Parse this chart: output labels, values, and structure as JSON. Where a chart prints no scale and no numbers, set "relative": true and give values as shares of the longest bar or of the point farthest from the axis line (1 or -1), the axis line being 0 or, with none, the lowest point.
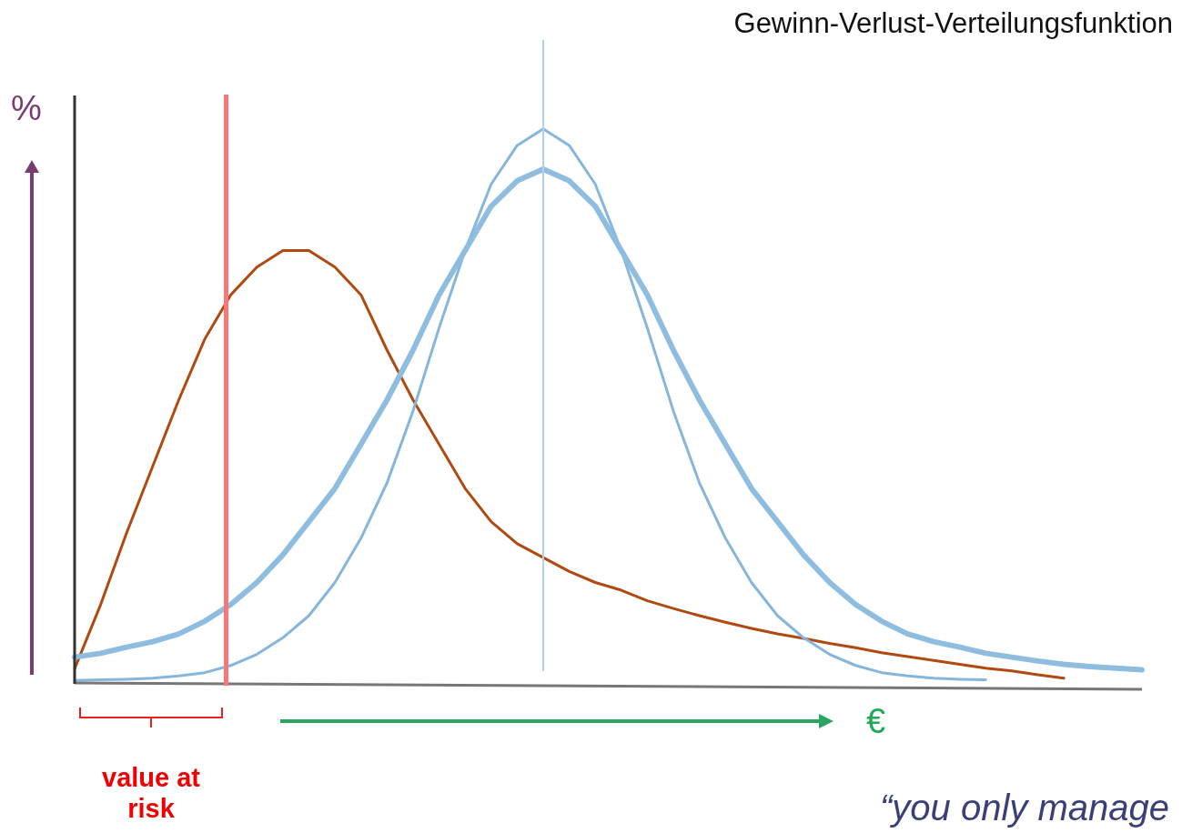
{
  "chart_data": {
    "type": "line",
    "title": "Gewinn-Verlust-Verteilungsfunktion",
    "xlabel": "€",
    "ylabel": "%",
    "relative": true,
    "marker": "none",
    "line_style": "solid",
    "categories": [
      null,
      null,
      null,
      null,
      null,
      null,
      null,
      null,
      null,
      null,
      null,
      null,
      null,
      null,
      null,
      null,
      null,
      null,
      null,
      null,
      null,
      null,
      null,
      null,
      null,
      null,
      null,
      null,
      null,
      null,
      null,
      null,
      null,
      null,
      null,
      null,
      null,
      null,
      null,
      null,
      null,
      null
    ],
    "series": [
      {
        "color": "#8fbde0",
        "values": [
          0.045,
          0.052,
          0.063,
          0.073,
          0.087,
          0.11,
          0.14,
          0.18,
          0.23,
          0.29,
          0.35,
          0.43,
          0.51,
          0.6,
          0.7,
          0.78,
          0.86,
          0.906,
          0.927,
          0.906,
          0.86,
          0.78,
          0.7,
          0.6,
          0.51,
          0.43,
          0.35,
          0.29,
          0.23,
          0.18,
          0.14,
          0.11,
          0.087,
          0.073,
          0.063,
          0.052,
          0.045,
          0.038,
          0.032,
          0.028,
          0.025,
          0.022
        ]
      },
      {
        "color": "#86b6dc",
        "values": [
          0.003,
          0.004,
          0.005,
          0.007,
          0.011,
          0.017,
          0.03,
          0.05,
          0.08,
          0.12,
          0.18,
          0.26,
          0.36,
          0.49,
          0.64,
          0.78,
          0.9,
          0.97,
          1,
          0.97,
          0.9,
          0.78,
          0.64,
          0.49,
          0.36,
          0.26,
          0.18,
          0.12,
          0.08,
          0.05,
          0.03,
          0.017,
          0.011,
          0.007,
          0.005,
          0.004,
          null,
          null,
          null,
          null,
          null,
          null
        ]
      },
      {
        "color": "#b04a10",
        "values": [
          0.024,
          0.14,
          0.27,
          0.39,
          0.51,
          0.62,
          0.7,
          0.75,
          0.78,
          0.78,
          0.75,
          0.7,
          0.6,
          0.51,
          0.43,
          0.35,
          0.29,
          0.25,
          0.225,
          0.2,
          0.18,
          0.166,
          0.147,
          0.133,
          0.12,
          0.108,
          0.097,
          0.087,
          0.079,
          0.07,
          0.062,
          0.053,
          0.046,
          0.039,
          0.032,
          0.025,
          0.02,
          0.013,
          0.007,
          null,
          null,
          null
        ]
      }
    ],
    "annotations": [
      "value at risk",
      "“you only manage"
    ]
  }
}
